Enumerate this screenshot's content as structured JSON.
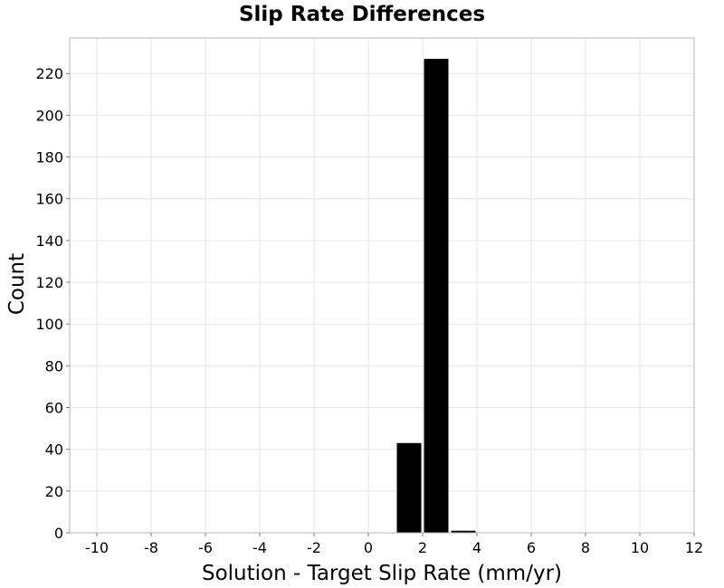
{
  "chart_data": {
    "type": "bar",
    "title": "Slip Rate Differences",
    "xlabel": "Solution - Target Slip Rate (mm/yr)",
    "ylabel": "Count",
    "xlim": [
      -11,
      12
    ],
    "ylim": [
      0,
      237
    ],
    "x_ticks": [
      -10,
      -8,
      -6,
      -4,
      -2,
      0,
      2,
      4,
      6,
      8,
      10,
      12
    ],
    "y_ticks": [
      0,
      20,
      40,
      60,
      80,
      100,
      120,
      140,
      160,
      180,
      200,
      220
    ],
    "grid": true,
    "legend": "none",
    "bin_width": 1,
    "bars": [
      {
        "x": 1.5,
        "value": 43
      },
      {
        "x": 2.5,
        "value": 227
      },
      {
        "x": 3.5,
        "value": 1
      }
    ],
    "colors": {
      "bar": "#000000",
      "grid": "#e6e6e6",
      "frame": "#b4b4b4",
      "background": "#ffffff"
    }
  }
}
